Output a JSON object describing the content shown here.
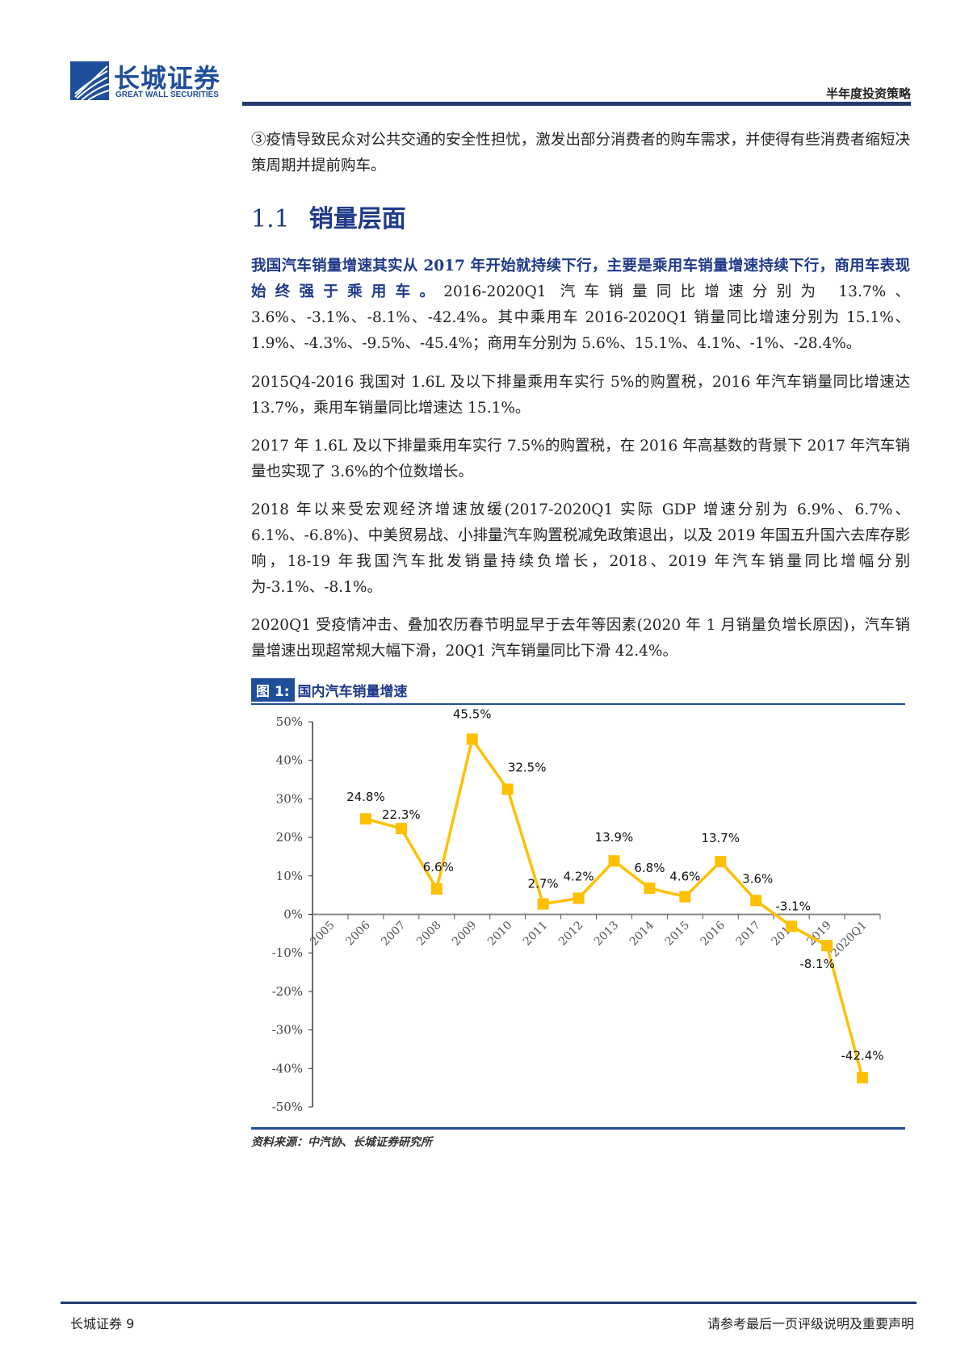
{
  "header": {
    "logo_cn": "长城证券",
    "logo_en": "GREAT WALL SECURITIES",
    "doc_type": "半年度投资策略",
    "brand_color": "#1f4e9a"
  },
  "body": {
    "para1": "③疫情导致民众对公共交通的安全性担忧，激发出部分消费者的购车需求，并使得有些消费者缩短决策周期并提前购车。",
    "section_number": "1.1",
    "section_title": "销量层面",
    "para2_bold": "我国汽车销量增速其实从 2017 年开始就持续下行，主要是乘用车销量增速持续下行，商用车表现始终强于乘用车。",
    "para2_rest": "2016-2020Q1 汽车销量同比增速分别为 13.7%、3.6%、-3.1%、-8.1%、-42.4%。其中乘用车 2016-2020Q1 销量同比增速分别为 15.1%、1.9%、-4.3%、-9.5%、-45.4%；商用车分别为 5.6%、15.1%、4.1%、-1%、-28.4%。",
    "para3": "2015Q4-2016 我国对 1.6L 及以下排量乘用车实行 5%的购置税，2016 年汽车销量同比增速达 13.7%，乘用车销量同比增速达 15.1%。",
    "para4": "2017 年 1.6L 及以下排量乘用车实行 7.5%的购置税，在 2016 年高基数的背景下 2017 年汽车销量也实现了 3.6%的个位数增长。",
    "para5": "2018 年以来受宏观经济增速放缓(2017-2020Q1 实际 GDP 增速分别为 6.9%、6.7%、6.1%、-6.8%)、中美贸易战、小排量汽车购置税减免政策退出，以及 2019 年国五升国六去库存影响，18-19 年我国汽车批发销量持续负增长，2018、2019 年汽车销量同比增幅分别为-3.1%、-8.1%。",
    "para6": "2020Q1 受疫情冲击、叠加农历春节明显早于去年等因素(2020 年 1 月销量负增长原因)，汽车销量增速出现超常规大幅下滑，20Q1 汽车销量同比下滑 42.4%。"
  },
  "figure": {
    "number": "图 1:",
    "title": "国内汽车销量增速",
    "source": "资料来源：中汽协、长城证券研究所"
  },
  "chart_data": {
    "type": "line",
    "categories": [
      "2005",
      "2006",
      "2007",
      "2008",
      "2009",
      "2010",
      "2011",
      "2012",
      "2013",
      "2014",
      "2015",
      "2016",
      "2017",
      "2018",
      "2019",
      "2020Q1"
    ],
    "values": [
      null,
      24.8,
      22.3,
      6.6,
      45.5,
      32.5,
      2.7,
      4.2,
      13.9,
      6.8,
      4.6,
      13.7,
      3.6,
      -3.1,
      -8.1,
      -42.4
    ],
    "labels": [
      "",
      "24.8%",
      "22.3%",
      "6.6%",
      "45.5%",
      "32.5%",
      "2.7%",
      "4.2%",
      "13.9%",
      "6.8%",
      "4.6%",
      "13.7%",
      "3.6%",
      "-3.1%",
      "-8.1%",
      "-42.4%"
    ],
    "yticks": [
      "50%",
      "40%",
      "30%",
      "20%",
      "10%",
      "0%",
      "-10%",
      "-20%",
      "-30%",
      "-40%",
      "-50%"
    ],
    "ylim": [
      -50,
      50
    ],
    "grid": false,
    "marker": "square",
    "line_color": "#FFC000"
  },
  "footer": {
    "left": "长城证券 9",
    "right": "请参考最后一页评级说明及重要声明"
  }
}
